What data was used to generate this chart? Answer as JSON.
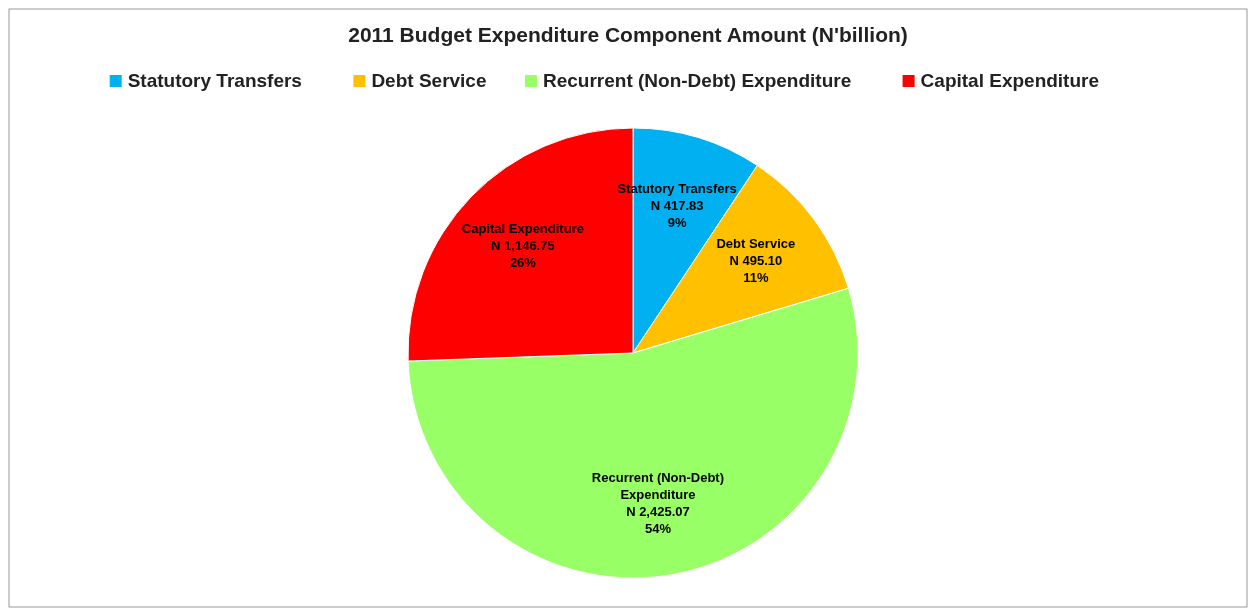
{
  "chart_data": {
    "type": "pie",
    "title": "2011 Budget Expenditure Component Amount (N'billion)",
    "categories": [
      "Statutory Transfers",
      "Debt Service",
      "Recurrent (Non-Debt) Expenditure",
      "Capital Expenditure"
    ],
    "values": [
      417.83,
      495.1,
      2425.07,
      1146.75
    ],
    "colors": [
      "#00b0f0",
      "#ffc000",
      "#99ff66",
      "#ff0000"
    ],
    "value_labels": [
      "N 417.83\n9%",
      "N 495.10\n11%",
      "N 2,425.07\n54%",
      "N 1,146.75\n26%"
    ],
    "legend": "top"
  }
}
